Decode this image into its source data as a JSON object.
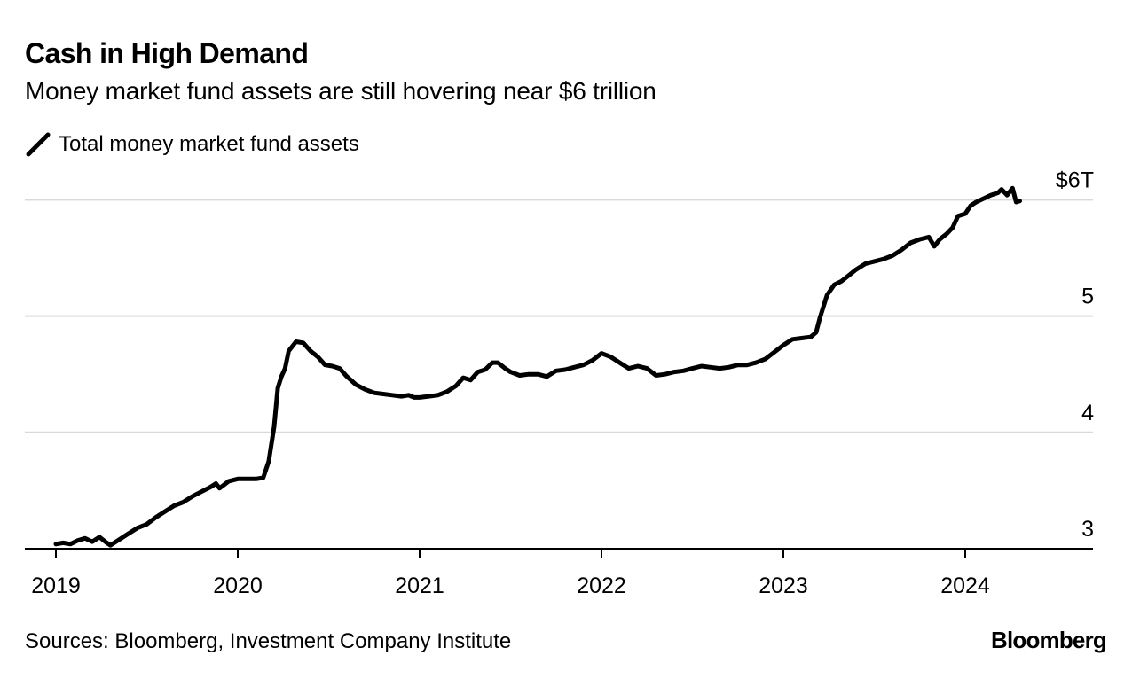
{
  "header": {
    "title": "Cash in High Demand",
    "subtitle": "Money market fund assets are still hovering near $6 trillion"
  },
  "footer": {
    "source": "Sources: Bloomberg, Investment Company Institute",
    "brand": "Bloomberg"
  },
  "chart_data": {
    "type": "line",
    "title": "Cash in High Demand",
    "subtitle": "Money market fund assets are still hovering near $6 trillion",
    "xlabel": "",
    "ylabel": "",
    "xlim": [
      2019.0,
      2024.7
    ],
    "ylim": [
      3,
      6
    ],
    "y_axis_side": "right",
    "grid": "horizontal",
    "legend_placement": "top-left",
    "line_color": "#000000",
    "grid_color": "#d9d9d9",
    "x_ticks": [
      {
        "value": 2019,
        "label": "2019"
      },
      {
        "value": 2020,
        "label": "2020"
      },
      {
        "value": 2021,
        "label": "2021"
      },
      {
        "value": 2022,
        "label": "2022"
      },
      {
        "value": 2023,
        "label": "2023"
      },
      {
        "value": 2024,
        "label": "2024"
      }
    ],
    "y_ticks": [
      {
        "value": 3,
        "label": "3"
      },
      {
        "value": 4,
        "label": "4"
      },
      {
        "value": 5,
        "label": "5"
      },
      {
        "value": 6,
        "label": "$6T"
      }
    ],
    "series": [
      {
        "name": "Total money market fund assets",
        "x": [
          2019.0,
          2019.04,
          2019.08,
          2019.12,
          2019.16,
          2019.2,
          2019.24,
          2019.28,
          2019.3,
          2019.34,
          2019.4,
          2019.45,
          2019.5,
          2019.55,
          2019.6,
          2019.65,
          2019.7,
          2019.75,
          2019.8,
          2019.85,
          2019.88,
          2019.9,
          2019.95,
          2020.0,
          2020.05,
          2020.1,
          2020.14,
          2020.17,
          2020.2,
          2020.22,
          2020.24,
          2020.26,
          2020.28,
          2020.32,
          2020.36,
          2020.4,
          2020.44,
          2020.48,
          2020.52,
          2020.56,
          2020.6,
          2020.65,
          2020.7,
          2020.75,
          2020.8,
          2020.85,
          2020.9,
          2020.94,
          2020.97,
          2021.0,
          2021.05,
          2021.1,
          2021.15,
          2021.2,
          2021.24,
          2021.28,
          2021.32,
          2021.36,
          2021.4,
          2021.43,
          2021.47,
          2021.5,
          2021.55,
          2021.6,
          2021.65,
          2021.7,
          2021.75,
          2021.8,
          2021.85,
          2021.9,
          2021.95,
          2022.0,
          2022.05,
          2022.1,
          2022.15,
          2022.2,
          2022.25,
          2022.3,
          2022.35,
          2022.4,
          2022.45,
          2022.5,
          2022.55,
          2022.6,
          2022.65,
          2022.7,
          2022.75,
          2022.8,
          2022.85,
          2022.9,
          2022.95,
          2023.0,
          2023.05,
          2023.1,
          2023.15,
          2023.18,
          2023.2,
          2023.24,
          2023.28,
          2023.32,
          2023.36,
          2023.4,
          2023.45,
          2023.5,
          2023.55,
          2023.6,
          2023.65,
          2023.7,
          2023.75,
          2023.8,
          2023.83,
          2023.86,
          2023.9,
          2023.93,
          2023.96,
          2024.0,
          2024.03,
          2024.06,
          2024.1,
          2024.14,
          2024.18,
          2024.2,
          2024.23,
          2024.26,
          2024.28,
          2024.3
        ],
        "values": [
          3.04,
          3.05,
          3.04,
          3.07,
          3.09,
          3.06,
          3.1,
          3.05,
          3.03,
          3.07,
          3.13,
          3.18,
          3.21,
          3.27,
          3.32,
          3.37,
          3.4,
          3.45,
          3.49,
          3.53,
          3.56,
          3.52,
          3.58,
          3.6,
          3.6,
          3.6,
          3.61,
          3.75,
          4.05,
          4.38,
          4.48,
          4.55,
          4.7,
          4.78,
          4.77,
          4.7,
          4.65,
          4.58,
          4.57,
          4.55,
          4.48,
          4.41,
          4.37,
          4.34,
          4.33,
          4.32,
          4.31,
          4.32,
          4.3,
          4.3,
          4.31,
          4.32,
          4.35,
          4.4,
          4.47,
          4.45,
          4.52,
          4.54,
          4.6,
          4.6,
          4.55,
          4.52,
          4.49,
          4.5,
          4.5,
          4.48,
          4.53,
          4.54,
          4.56,
          4.58,
          4.62,
          4.68,
          4.65,
          4.6,
          4.55,
          4.57,
          4.55,
          4.49,
          4.5,
          4.52,
          4.53,
          4.55,
          4.57,
          4.56,
          4.55,
          4.56,
          4.58,
          4.58,
          4.6,
          4.63,
          4.69,
          4.75,
          4.8,
          4.81,
          4.82,
          4.86,
          4.98,
          5.18,
          5.27,
          5.3,
          5.35,
          5.4,
          5.45,
          5.47,
          5.49,
          5.52,
          5.57,
          5.63,
          5.66,
          5.68,
          5.6,
          5.66,
          5.71,
          5.76,
          5.86,
          5.88,
          5.95,
          5.98,
          6.01,
          6.04,
          6.06,
          6.09,
          6.04,
          6.1,
          5.98,
          5.99
        ]
      }
    ]
  }
}
